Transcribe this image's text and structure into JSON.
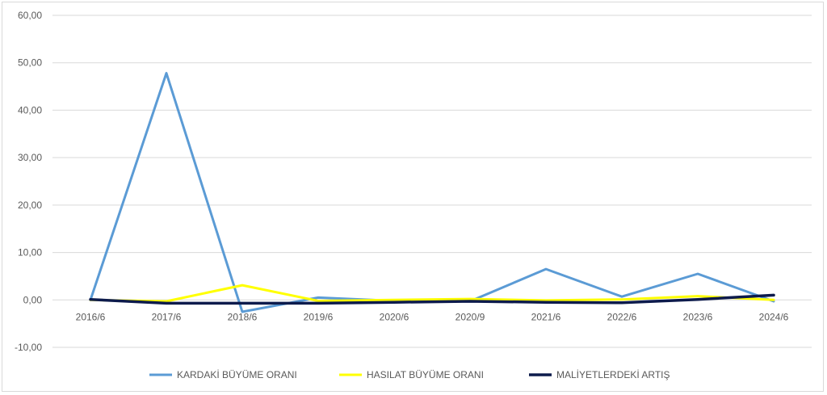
{
  "chart_data": {
    "type": "line",
    "categories": [
      "2016/6",
      "2017/6",
      "2018/6",
      "2019/6",
      "2020/6",
      "2020/9",
      "2021/6",
      "2022/6",
      "2023/6",
      "2024/6"
    ],
    "ylim": [
      -10,
      60
    ],
    "yticks": [
      "60,00",
      "50,00",
      "40,00",
      "30,00",
      "20,00",
      "10,00",
      "0,00",
      "-10,00"
    ],
    "ytick_values": [
      60,
      50,
      40,
      30,
      20,
      10,
      0,
      -10
    ],
    "grid": true,
    "legend_position": "bottom",
    "series": [
      {
        "name": "KARDAKİ BÜYÜME ORANI",
        "color": "#5b9bd5",
        "values": [
          0.0,
          47.8,
          -2.5,
          0.5,
          -0.2,
          -0.3,
          6.5,
          0.7,
          5.5,
          -0.3
        ]
      },
      {
        "name": "HASILAT BÜYÜME ORANI",
        "color": "#ffff00",
        "values": [
          0.0,
          -0.3,
          3.1,
          -0.2,
          0.0,
          0.2,
          -0.1,
          0.1,
          0.8,
          0.0
        ]
      },
      {
        "name": "MALİYETLERDEKİ ARTIŞ",
        "color": "#0d1b4c",
        "values": [
          0.1,
          -0.7,
          -0.7,
          -0.7,
          -0.5,
          -0.3,
          -0.5,
          -0.6,
          0.1,
          1.0
        ]
      }
    ]
  }
}
